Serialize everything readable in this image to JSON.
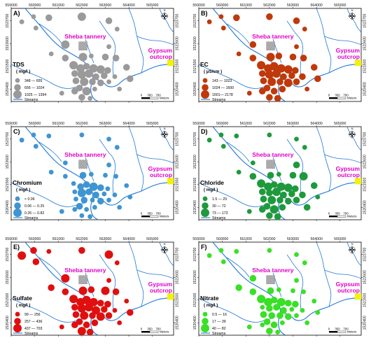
{
  "x_ticks": [
    "559000",
    "560000",
    "561000",
    "562000",
    "563000",
    "564000",
    "565000"
  ],
  "y_ticks": [
    "1523700",
    "1522600",
    "1521500",
    "1520400"
  ],
  "sites": {
    "tannery": "Sheba tannery",
    "gypsum_line1": "Gypsum",
    "gypsum_line2": "outcrop"
  },
  "legend_common": {
    "streams": "Streams",
    "scale": [
      "0",
      "350",
      "700"
    ],
    "scale_unit": "Meters"
  },
  "colors": {
    "stream": "#1f78d6",
    "TDS": "#9a9a9a",
    "EC": "#c0390b",
    "Chromium": "#3f95d2",
    "Chloride": "#1e9a3c",
    "Sulfate": "#e00f0f",
    "Nitrate": "#39e026",
    "gypsum": "#f2f20a"
  },
  "panels": [
    {
      "letter": "A)",
      "param": "TDS",
      "unit": "( mg/l )",
      "classes": [
        "348 — 655",
        "656 — 1024",
        "1025 — 1394"
      ]
    },
    {
      "letter": "B)",
      "param": "EC",
      "unit": "( μS/cm )",
      "classes": [
        "143 — 1023",
        "1024 — 1600",
        "1601— 2178"
      ]
    },
    {
      "letter": "C)",
      "param": "Chromium",
      "unit": "( mg/l )",
      "classes": [
        "< 0.06",
        "0.06 — 0.25",
        "0.26 — 0.82"
      ]
    },
    {
      "letter": "D)",
      "param": "Chloride",
      "unit": "( mg/l )",
      "classes": [
        "1.5 — 29",
        "30 — 72",
        "73 — 173"
      ]
    },
    {
      "letter": "E)",
      "param": "Sulfate",
      "unit": "( mg/l )",
      "classes": [
        "99 — 256",
        "257 — 436",
        "437 — 703"
      ]
    },
    {
      "letter": "F)",
      "param": "Nitrate",
      "unit": "( mg/l )",
      "classes": [
        "0.5 — 16",
        "17 — 39",
        "40 — 82"
      ]
    }
  ],
  "samples": [
    {
      "x": 559450,
      "y": 1523650,
      "cls": [
        0,
        0,
        0,
        0,
        2,
        0
      ]
    },
    {
      "x": 560050,
      "y": 1523350,
      "cls": [
        0,
        0,
        0,
        0,
        1,
        0
      ]
    },
    {
      "x": 559950,
      "y": 1523900,
      "cls": [
        0,
        0,
        0,
        0,
        1,
        0
      ]
    },
    {
      "x": 560600,
      "y": 1523850,
      "cls": [
        1,
        1,
        0,
        0,
        0,
        0
      ]
    },
    {
      "x": 562000,
      "y": 1523900,
      "cls": [
        2,
        1,
        0,
        0,
        1,
        0
      ]
    },
    {
      "x": 563150,
      "y": 1523700,
      "cls": [
        1,
        1,
        0,
        0,
        2,
        0
      ]
    },
    {
      "x": 563500,
      "y": 1523300,
      "cls": [
        0,
        0,
        0,
        0,
        0,
        0
      ]
    },
    {
      "x": 561300,
      "y": 1522550,
      "cls": [
        2,
        1,
        0,
        0,
        2,
        1
      ]
    },
    {
      "x": 563150,
      "y": 1522450,
      "cls": [
        0,
        0,
        0,
        1,
        0,
        0
      ]
    },
    {
      "x": 560700,
      "y": 1522100,
      "cls": [
        0,
        0,
        0,
        0,
        1,
        1
      ]
    },
    {
      "x": 561300,
      "y": 1521900,
      "cls": [
        1,
        1,
        0,
        1,
        1,
        1
      ]
    },
    {
      "x": 562050,
      "y": 1521950,
      "cls": [
        2,
        2,
        1,
        1,
        2,
        1
      ]
    },
    {
      "x": 562400,
      "y": 1522000,
      "cls": [
        0,
        1,
        0,
        0,
        1,
        0
      ]
    },
    {
      "x": 563000,
      "y": 1521950,
      "cls": [
        1,
        1,
        0,
        1,
        2,
        0
      ]
    },
    {
      "x": 563450,
      "y": 1521900,
      "cls": [
        1,
        1,
        0,
        2,
        1,
        0
      ]
    },
    {
      "x": 563900,
      "y": 1521450,
      "cls": [
        1,
        1,
        0,
        1,
        0,
        0
      ]
    },
    {
      "x": 561650,
      "y": 1521550,
      "cls": [
        2,
        2,
        0,
        2,
        2,
        2
      ]
    },
    {
      "x": 561950,
      "y": 1521400,
      "cls": [
        2,
        2,
        1,
        2,
        2,
        2
      ]
    },
    {
      "x": 562200,
      "y": 1521500,
      "cls": [
        1,
        2,
        1,
        1,
        2,
        1
      ]
    },
    {
      "x": 562500,
      "y": 1521400,
      "cls": [
        2,
        2,
        2,
        2,
        2,
        2
      ]
    },
    {
      "x": 562800,
      "y": 1521350,
      "cls": [
        2,
        2,
        1,
        2,
        1,
        1
      ]
    },
    {
      "x": 563100,
      "y": 1521300,
      "cls": [
        1,
        1,
        0,
        1,
        1,
        1
      ]
    },
    {
      "x": 561700,
      "y": 1521150,
      "cls": [
        1,
        1,
        0,
        1,
        1,
        0
      ]
    },
    {
      "x": 562000,
      "y": 1521100,
      "cls": [
        2,
        2,
        2,
        1,
        2,
        1
      ]
    },
    {
      "x": 562300,
      "y": 1521150,
      "cls": [
        2,
        2,
        1,
        2,
        2,
        1
      ]
    },
    {
      "x": 562600,
      "y": 1521000,
      "cls": [
        1,
        1,
        1,
        1,
        2,
        1
      ]
    },
    {
      "x": 562950,
      "y": 1521050,
      "cls": [
        1,
        1,
        0,
        1,
        1,
        0
      ]
    },
    {
      "x": 563400,
      "y": 1521000,
      "cls": [
        0,
        1,
        0,
        1,
        0,
        0
      ]
    },
    {
      "x": 561750,
      "y": 1520800,
      "cls": [
        1,
        1,
        0,
        1,
        1,
        1
      ]
    },
    {
      "x": 562100,
      "y": 1520750,
      "cls": [
        2,
        2,
        1,
        2,
        2,
        1
      ]
    },
    {
      "x": 562450,
      "y": 1520750,
      "cls": [
        1,
        1,
        0,
        1,
        1,
        1
      ]
    },
    {
      "x": 562800,
      "y": 1520700,
      "cls": [
        1,
        2,
        1,
        1,
        2,
        1
      ]
    },
    {
      "x": 563150,
      "y": 1520750,
      "cls": [
        0,
        1,
        0,
        1,
        1,
        0
      ]
    },
    {
      "x": 564050,
      "y": 1520900,
      "cls": [
        1,
        1,
        0,
        0,
        1,
        0
      ]
    },
    {
      "x": 561900,
      "y": 1520450,
      "cls": [
        1,
        1,
        1,
        1,
        1,
        1
      ]
    },
    {
      "x": 562200,
      "y": 1520300,
      "cls": [
        2,
        1,
        0,
        2,
        1,
        1
      ]
    },
    {
      "x": 562550,
      "y": 1520400,
      "cls": [
        0,
        1,
        0,
        1,
        1,
        0
      ]
    },
    {
      "x": 561700,
      "y": 1520300,
      "cls": [
        1,
        1,
        0,
        1,
        1,
        0
      ]
    },
    {
      "x": 562000,
      "y": 1520000,
      "cls": [
        1,
        1,
        0,
        1,
        2,
        1
      ]
    },
    {
      "x": 562350,
      "y": 1519950,
      "cls": [
        0,
        1,
        0,
        1,
        1,
        0
      ]
    },
    {
      "x": 561150,
      "y": 1520200,
      "cls": [
        0,
        0,
        0,
        0,
        0,
        0
      ]
    },
    {
      "x": 563600,
      "y": 1520400,
      "cls": [
        0,
        0,
        0,
        1,
        0,
        0
      ]
    }
  ]
}
